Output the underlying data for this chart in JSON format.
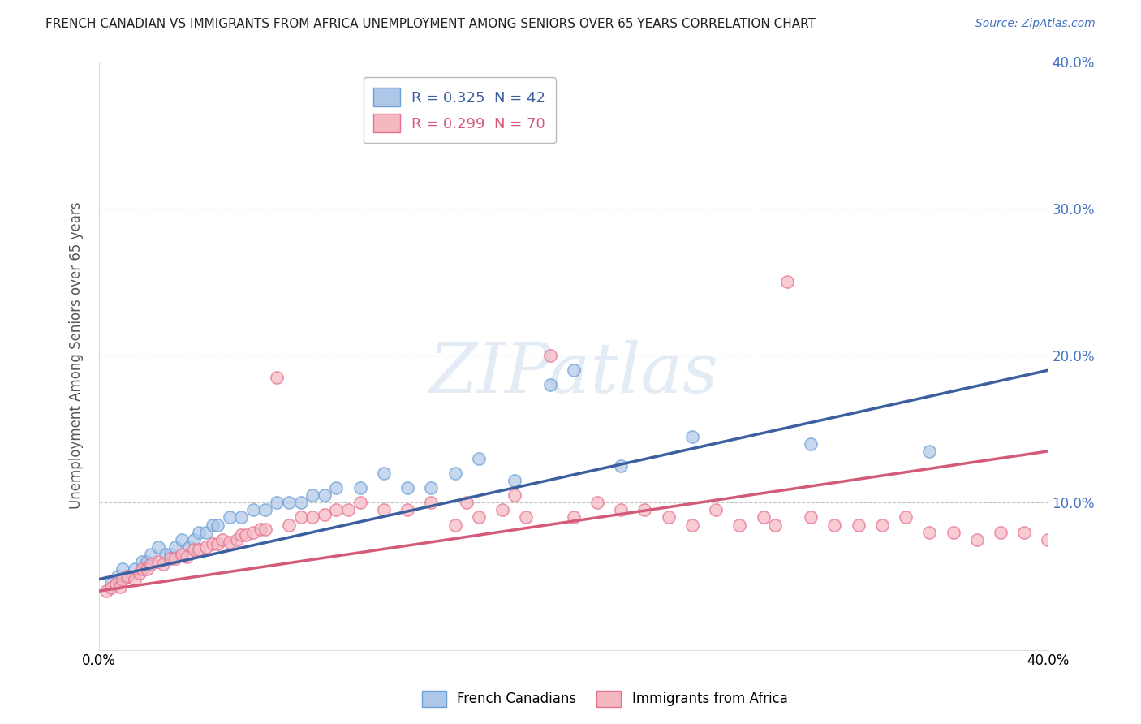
{
  "title": "FRENCH CANADIAN VS IMMIGRANTS FROM AFRICA UNEMPLOYMENT AMONG SENIORS OVER 65 YEARS CORRELATION CHART",
  "source": "Source: ZipAtlas.com",
  "ylabel": "Unemployment Among Seniors over 65 years",
  "xlim": [
    0,
    0.4
  ],
  "ylim": [
    0,
    0.4
  ],
  "legend_entries": [
    {
      "label": "R = 0.325  N = 42"
    },
    {
      "label": "R = 0.299  N = 70"
    }
  ],
  "blue_scatter_color": "#aec6e8",
  "pink_scatter_color": "#f4b8c1",
  "blue_line_color": "#3c5fa0",
  "pink_line_color": "#d45a7a",
  "blue_edge_color": "#6a9fd8",
  "pink_edge_color": "#e87090",
  "watermark_text": "ZIPatlas",
  "background_color": "#ffffff",
  "grid_color": "#bbbbbb",
  "title_color": "#222222",
  "source_color": "#4472c4",
  "yaxis_label_color": "#4472c4",
  "blue_scatter_x": [
    0.005,
    0.008,
    0.01,
    0.012,
    0.015,
    0.018,
    0.02,
    0.022,
    0.025,
    0.028,
    0.03,
    0.032,
    0.035,
    0.038,
    0.04,
    0.042,
    0.045,
    0.048,
    0.05,
    0.055,
    0.06,
    0.065,
    0.07,
    0.075,
    0.08,
    0.085,
    0.09,
    0.095,
    0.1,
    0.11,
    0.12,
    0.13,
    0.14,
    0.15,
    0.16,
    0.175,
    0.19,
    0.2,
    0.22,
    0.25,
    0.3,
    0.35
  ],
  "blue_scatter_y": [
    0.045,
    0.05,
    0.055,
    0.05,
    0.055,
    0.06,
    0.06,
    0.065,
    0.07,
    0.065,
    0.065,
    0.07,
    0.075,
    0.07,
    0.075,
    0.08,
    0.08,
    0.085,
    0.085,
    0.09,
    0.09,
    0.095,
    0.095,
    0.1,
    0.1,
    0.1,
    0.105,
    0.105,
    0.11,
    0.11,
    0.12,
    0.11,
    0.11,
    0.12,
    0.13,
    0.115,
    0.18,
    0.19,
    0.125,
    0.145,
    0.14,
    0.135
  ],
  "pink_scatter_x": [
    0.003,
    0.005,
    0.007,
    0.009,
    0.01,
    0.012,
    0.015,
    0.017,
    0.018,
    0.02,
    0.022,
    0.025,
    0.027,
    0.03,
    0.032,
    0.035,
    0.037,
    0.04,
    0.042,
    0.045,
    0.048,
    0.05,
    0.052,
    0.055,
    0.058,
    0.06,
    0.062,
    0.065,
    0.068,
    0.07,
    0.075,
    0.08,
    0.085,
    0.09,
    0.095,
    0.1,
    0.105,
    0.11,
    0.12,
    0.13,
    0.14,
    0.15,
    0.16,
    0.17,
    0.18,
    0.19,
    0.2,
    0.21,
    0.22,
    0.23,
    0.24,
    0.25,
    0.26,
    0.27,
    0.28,
    0.29,
    0.3,
    0.31,
    0.32,
    0.33,
    0.34,
    0.35,
    0.36,
    0.37,
    0.38,
    0.39,
    0.4,
    0.155,
    0.175,
    0.285
  ],
  "pink_scatter_y": [
    0.04,
    0.042,
    0.045,
    0.043,
    0.048,
    0.05,
    0.048,
    0.052,
    0.055,
    0.055,
    0.058,
    0.06,
    0.058,
    0.062,
    0.062,
    0.065,
    0.063,
    0.068,
    0.068,
    0.07,
    0.072,
    0.072,
    0.075,
    0.073,
    0.075,
    0.078,
    0.078,
    0.08,
    0.082,
    0.082,
    0.185,
    0.085,
    0.09,
    0.09,
    0.092,
    0.095,
    0.095,
    0.1,
    0.095,
    0.095,
    0.1,
    0.085,
    0.09,
    0.095,
    0.09,
    0.2,
    0.09,
    0.1,
    0.095,
    0.095,
    0.09,
    0.085,
    0.095,
    0.085,
    0.09,
    0.25,
    0.09,
    0.085,
    0.085,
    0.085,
    0.09,
    0.08,
    0.08,
    0.075,
    0.08,
    0.08,
    0.075,
    0.1,
    0.105,
    0.085
  ],
  "blue_line_start_x": 0.0,
  "blue_line_start_y": 0.048,
  "blue_line_end_x": 0.4,
  "blue_line_end_y": 0.19,
  "pink_line_start_x": 0.0,
  "pink_line_start_y": 0.04,
  "pink_line_end_x": 0.4,
  "pink_line_end_y": 0.135
}
